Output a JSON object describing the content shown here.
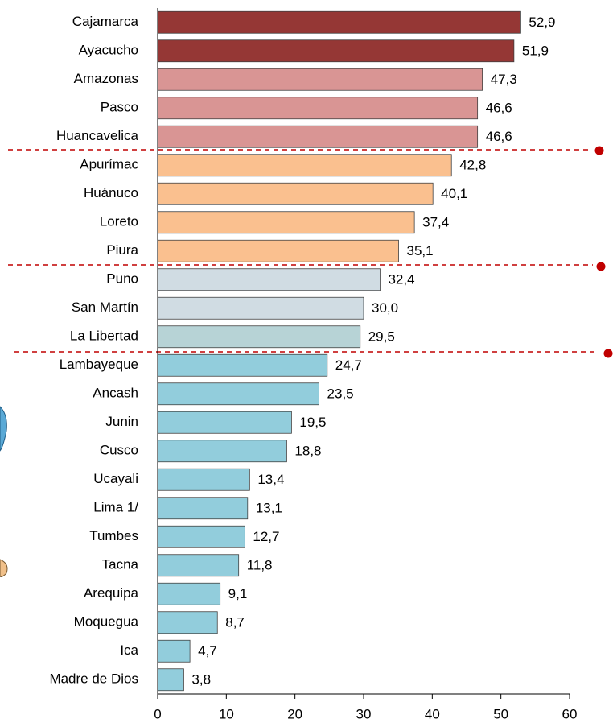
{
  "chart_data": {
    "type": "barh",
    "categories": [
      "Cajamarca",
      "Ayacucho",
      "Amazonas",
      "Pasco",
      "Huancavelica",
      "Apurímac",
      "Huánuco",
      "Loreto",
      "Piura",
      "Puno",
      "San Martín",
      "La Libertad",
      "Lambayeque",
      "Ancash",
      "Junin",
      "Cusco",
      "Ucayali",
      "Lima 1/",
      "Tumbes",
      "Tacna",
      "Arequipa",
      "Moquegua",
      "Ica",
      "Madre de Dios"
    ],
    "values": [
      52.9,
      51.9,
      47.3,
      46.6,
      46.6,
      42.8,
      40.1,
      37.4,
      35.1,
      32.4,
      30.0,
      29.5,
      24.7,
      23.5,
      19.5,
      18.8,
      13.4,
      13.1,
      12.7,
      11.8,
      9.1,
      8.7,
      4.7,
      3.8
    ],
    "value_labels": [
      "52,9",
      "51,9",
      "47,3",
      "46,6",
      "46,6",
      "42,8",
      "40,1",
      "37,4",
      "35,1",
      "32,4",
      "30,0",
      "29,5",
      "24,7",
      "23,5",
      "19,5",
      "18,8",
      "13,4",
      "13,1",
      "12,7",
      "11,8",
      "9,1",
      "8,7",
      "4,7",
      "3,8"
    ],
    "colors": [
      "#953735",
      "#953735",
      "#d99594",
      "#d99594",
      "#d99594",
      "#fac08f",
      "#fac08f",
      "#fac08f",
      "#fac08f",
      "#d0dce3",
      "#d0dce3",
      "#b7d3d6",
      "#92cddc",
      "#92cddc",
      "#92cddc",
      "#92cddc",
      "#92cddc",
      "#92cddc",
      "#92cddc",
      "#92cddc",
      "#92cddc",
      "#92cddc",
      "#92cddc",
      "#92cddc"
    ],
    "xlim": [
      0,
      60
    ],
    "xticks": [
      0,
      10,
      20,
      30,
      40,
      50,
      60
    ],
    "grid": false
  }
}
